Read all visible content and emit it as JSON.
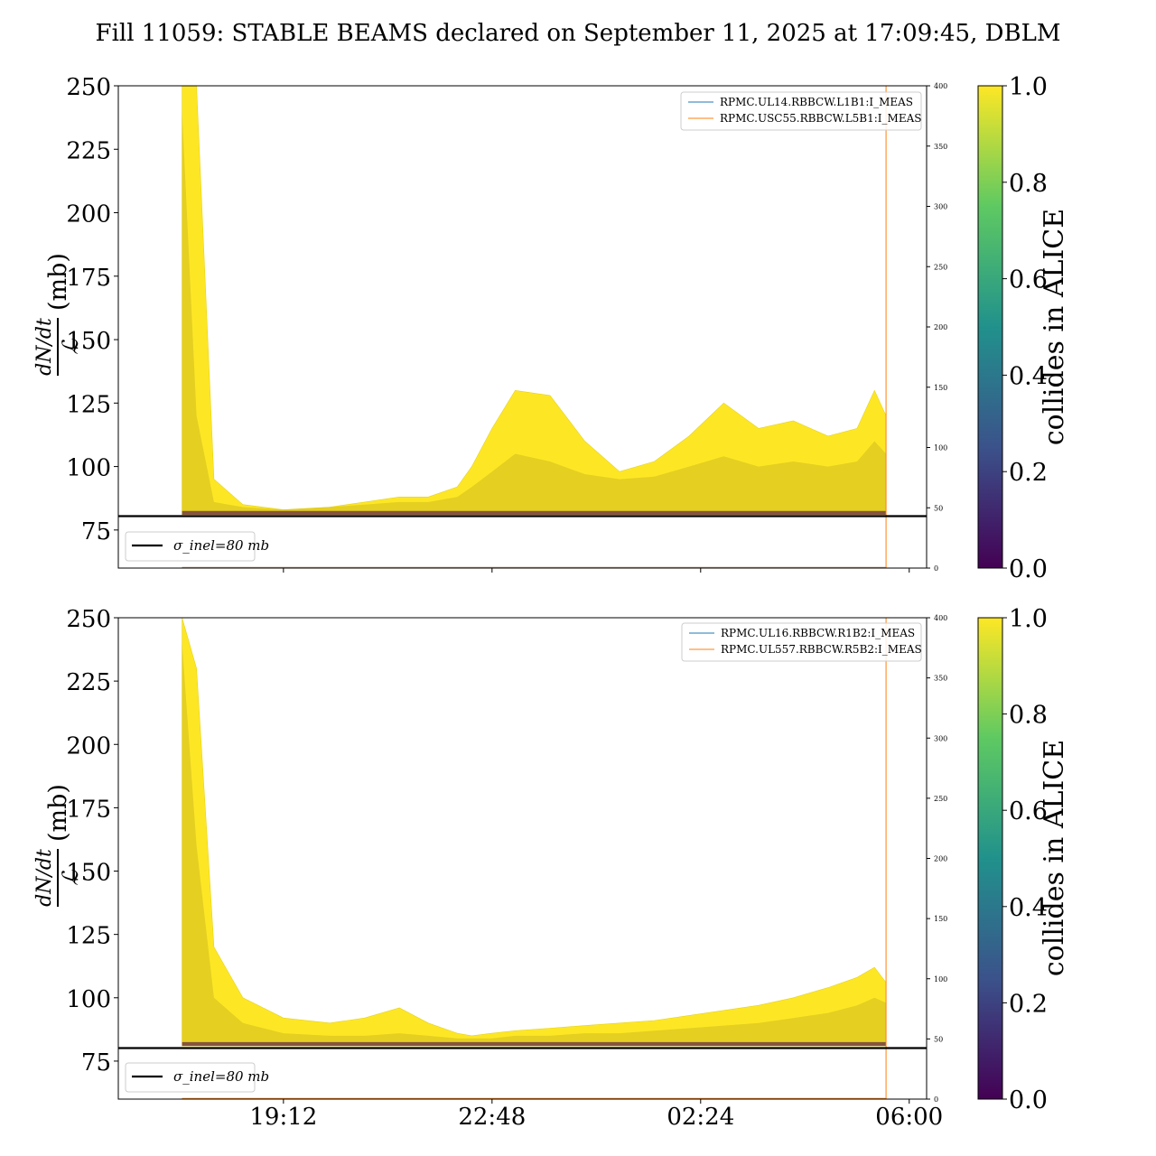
{
  "title": "Fill 11059: STABLE BEAMS declared on September 11, 2025 at 17:09:45, DBLM",
  "x_ticks": [
    "19:12",
    "22:48",
    "02:24",
    "06:00"
  ],
  "colorbar": {
    "label": "collides in ALICE",
    "ticks": [
      "0.0",
      "0.2",
      "0.4",
      "0.6",
      "0.8",
      "1.0"
    ],
    "colormap": [
      "#440154",
      "#3b528b",
      "#21918c",
      "#5ec962",
      "#fde725"
    ]
  },
  "chart_data": [
    {
      "type": "area",
      "ylabel": {
        "numerator": "dN/dt",
        "denominator": "ℒ",
        "unit": "(mb)"
      },
      "ylim": [
        60,
        250
      ],
      "y_ticks": [
        "75",
        "100",
        "125",
        "150",
        "175",
        "200",
        "225",
        "250"
      ],
      "y2lim": [
        0,
        400
      ],
      "y2_ticks": [
        "0",
        "50",
        "100",
        "150",
        "200",
        "250",
        "300",
        "350",
        "400"
      ],
      "x_hours": [
        17.45,
        17.7,
        18.0,
        18.5,
        19.2,
        20.0,
        20.6,
        21.2,
        21.7,
        22.2,
        22.45,
        22.8,
        23.2,
        23.8,
        24.4,
        25.0,
        25.6,
        26.2,
        26.8,
        27.4,
        28.0,
        28.6,
        29.1,
        29.4,
        29.6
      ],
      "upper_envelope": [
        250,
        250,
        95,
        85,
        83,
        84,
        86,
        88,
        88,
        92,
        100,
        115,
        130,
        128,
        110,
        98,
        102,
        112,
        125,
        115,
        118,
        112,
        115,
        130,
        120
      ],
      "core_band_top": [
        240,
        120,
        86,
        84,
        83,
        84,
        85,
        86,
        86,
        88,
        92,
        98,
        105,
        102,
        97,
        95,
        96,
        100,
        104,
        100,
        102,
        100,
        102,
        110,
        105
      ],
      "horizontal_line": {
        "y": 80,
        "legend": "σ_inel=80 mb"
      },
      "series": [
        {
          "name": "RPMC.UL14.RBBCW.L1B1:I_MEAS",
          "color": "#1f77b4"
        },
        {
          "name": "RPMC.USC55.RBBCW.L5B1:I_MEAS",
          "color": "#ff7f0e"
        }
      ]
    },
    {
      "type": "area",
      "ylabel": {
        "numerator": "dN/dt",
        "denominator": "ℒ",
        "unit": "(mb)"
      },
      "ylim": [
        60,
        250
      ],
      "y_ticks": [
        "75",
        "100",
        "125",
        "150",
        "175",
        "200",
        "225",
        "250"
      ],
      "y2lim": [
        0,
        400
      ],
      "y2_ticks": [
        "0",
        "50",
        "100",
        "150",
        "200",
        "250",
        "300",
        "350",
        "400"
      ],
      "x_hours": [
        17.45,
        17.7,
        18.0,
        18.5,
        19.2,
        20.0,
        20.6,
        21.2,
        21.7,
        22.2,
        22.45,
        22.8,
        23.2,
        23.8,
        24.4,
        25.0,
        25.6,
        26.2,
        26.8,
        27.4,
        28.0,
        28.6,
        29.1,
        29.4,
        29.6
      ],
      "upper_envelope": [
        250,
        230,
        120,
        100,
        92,
        90,
        92,
        96,
        90,
        86,
        85,
        86,
        87,
        88,
        89,
        90,
        91,
        93,
        95,
        97,
        100,
        104,
        108,
        112,
        106
      ],
      "core_band_top": [
        240,
        160,
        100,
        90,
        86,
        85,
        85,
        86,
        85,
        84,
        84,
        84,
        85,
        85,
        86,
        86,
        87,
        88,
        89,
        90,
        92,
        94,
        97,
        100,
        98
      ],
      "horizontal_line": {
        "y": 80,
        "legend": "σ_inel=80 mb"
      },
      "series": [
        {
          "name": "RPMC.UL16.RBBCW.R1B2:I_MEAS",
          "color": "#1f77b4"
        },
        {
          "name": "RPMC.UL557.RBBCW.R5B2:I_MEAS",
          "color": "#ff7f0e"
        }
      ]
    }
  ]
}
